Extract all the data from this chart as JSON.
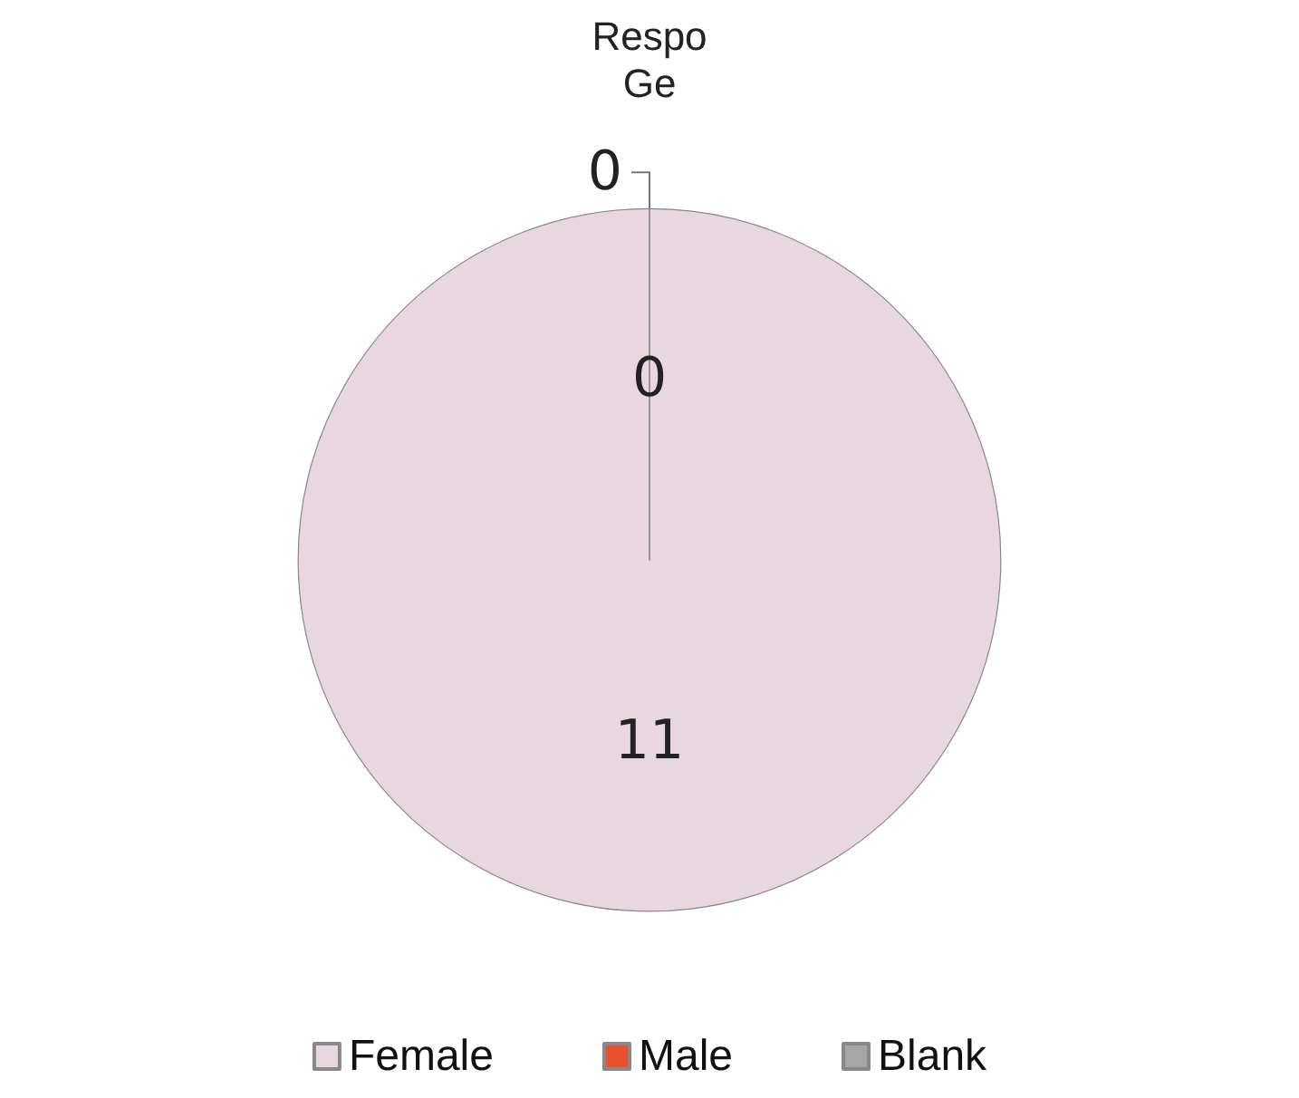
{
  "chart_data": {
    "type": "pie",
    "title": "Respo\nGe",
    "categories": [
      "Female",
      "Male",
      "Blank"
    ],
    "values": [
      11,
      0,
      0
    ],
    "colors": [
      "#e8d6e0",
      "#e8502e",
      "#a6a6a6"
    ],
    "value_labels": [
      "11",
      "0",
      "0"
    ],
    "legend": "bottom"
  }
}
